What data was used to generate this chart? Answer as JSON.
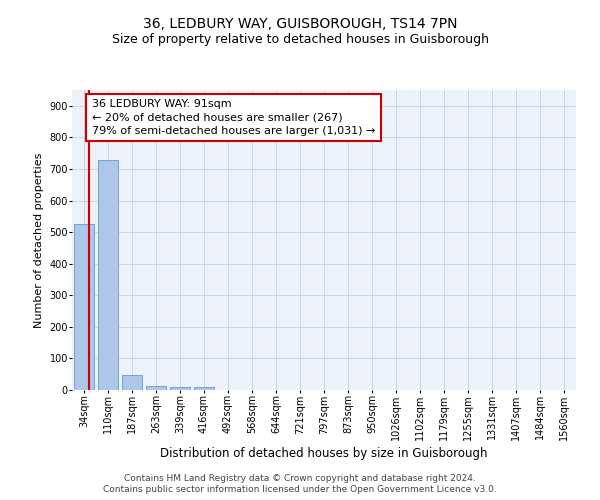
{
  "title": "36, LEDBURY WAY, GUISBOROUGH, TS14 7PN",
  "subtitle": "Size of property relative to detached houses in Guisborough",
  "xlabel": "Distribution of detached houses by size in Guisborough",
  "ylabel": "Number of detached properties",
  "footnote1": "Contains HM Land Registry data © Crown copyright and database right 2024.",
  "footnote2": "Contains public sector information licensed under the Open Government Licence v3.0.",
  "categories": [
    "34sqm",
    "110sqm",
    "187sqm",
    "263sqm",
    "339sqm",
    "416sqm",
    "492sqm",
    "568sqm",
    "644sqm",
    "721sqm",
    "797sqm",
    "873sqm",
    "950sqm",
    "1026sqm",
    "1102sqm",
    "1179sqm",
    "1255sqm",
    "1331sqm",
    "1407sqm",
    "1484sqm",
    "1560sqm"
  ],
  "values": [
    525,
    727,
    48,
    12,
    10,
    8,
    0,
    0,
    0,
    0,
    0,
    0,
    0,
    0,
    0,
    0,
    0,
    0,
    0,
    0,
    0
  ],
  "bar_color": "#aec6e8",
  "bar_edge_color": "#5a9fd4",
  "grid_color": "#c8d4e8",
  "vline_color": "#cc0000",
  "annotation_line1": "36 LEDBURY WAY: 91sqm",
  "annotation_line2": "← 20% of detached houses are smaller (267)",
  "annotation_line3": "79% of semi-detached houses are larger (1,031) →",
  "annotation_box_color": "#cc0000",
  "annotation_fill": "#ffffff",
  "ylim": [
    0,
    950
  ],
  "yticks": [
    0,
    100,
    200,
    300,
    400,
    500,
    600,
    700,
    800,
    900
  ],
  "bg_color": "#edf1f9",
  "title_fontsize": 10,
  "subtitle_fontsize": 9,
  "annotation_fontsize": 8,
  "ylabel_fontsize": 8,
  "xlabel_fontsize": 8.5,
  "tick_fontsize": 7,
  "footnote_fontsize": 6.5
}
